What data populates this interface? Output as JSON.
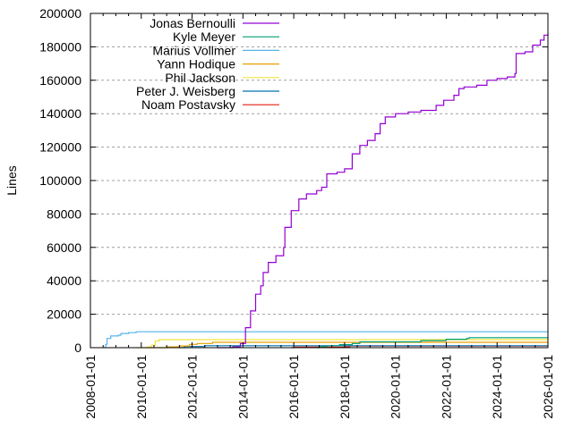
{
  "chart_data": {
    "type": "line",
    "title": "",
    "xlabel": "",
    "ylabel": "Lines",
    "xlim": [
      "2008-01-01",
      "2026-01-01"
    ],
    "ylim": [
      0,
      200000
    ],
    "grid": true,
    "legend_position": "top-left",
    "x_ticks": [
      "2008-01-01",
      "2010-01-01",
      "2012-01-01",
      "2014-01-01",
      "2016-01-01",
      "2018-01-01",
      "2020-01-01",
      "2022-01-01",
      "2024-01-01",
      "2026-01-01"
    ],
    "y_ticks": [
      0,
      20000,
      40000,
      60000,
      80000,
      100000,
      120000,
      140000,
      160000,
      180000,
      200000
    ],
    "series": [
      {
        "name": "Jonas Bernoulli",
        "color": "#9400d3",
        "points": [
          [
            2013.0,
            0
          ],
          [
            2013.6,
            500
          ],
          [
            2013.9,
            2500
          ],
          [
            2014.1,
            12000
          ],
          [
            2014.3,
            22000
          ],
          [
            2014.5,
            32000
          ],
          [
            2014.7,
            37000
          ],
          [
            2014.8,
            45000
          ],
          [
            2015.0,
            51000
          ],
          [
            2015.3,
            55000
          ],
          [
            2015.6,
            60000
          ],
          [
            2015.65,
            72000
          ],
          [
            2015.9,
            82000
          ],
          [
            2016.2,
            89000
          ],
          [
            2016.5,
            92000
          ],
          [
            2016.9,
            94000
          ],
          [
            2017.1,
            96000
          ],
          [
            2017.3,
            104000
          ],
          [
            2017.7,
            105000
          ],
          [
            2018.0,
            107000
          ],
          [
            2018.3,
            116000
          ],
          [
            2018.6,
            121000
          ],
          [
            2018.9,
            124000
          ],
          [
            2019.2,
            128000
          ],
          [
            2019.4,
            134000
          ],
          [
            2019.6,
            138000
          ],
          [
            2020.0,
            140000
          ],
          [
            2020.5,
            141000
          ],
          [
            2021.0,
            142000
          ],
          [
            2021.6,
            145000
          ],
          [
            2021.9,
            148000
          ],
          [
            2022.3,
            151000
          ],
          [
            2022.5,
            155000
          ],
          [
            2022.7,
            156000
          ],
          [
            2023.2,
            157000
          ],
          [
            2023.6,
            160000
          ],
          [
            2024.0,
            161000
          ],
          [
            2024.4,
            162000
          ],
          [
            2024.7,
            164000
          ],
          [
            2024.75,
            176000
          ],
          [
            2025.1,
            177000
          ],
          [
            2025.4,
            181000
          ],
          [
            2025.7,
            184000
          ],
          [
            2025.85,
            187000
          ],
          [
            2026.0,
            188000
          ]
        ]
      },
      {
        "name": "Kyle Meyer",
        "color": "#009e73",
        "points": [
          [
            2016.9,
            0
          ],
          [
            2017.0,
            700
          ],
          [
            2017.3,
            1200
          ],
          [
            2017.8,
            1800
          ],
          [
            2018.3,
            2500
          ],
          [
            2018.6,
            3500
          ],
          [
            2019.2,
            3500
          ],
          [
            2021.0,
            4200
          ],
          [
            2022.0,
            4200
          ],
          [
            2022.0,
            5000
          ],
          [
            2022.8,
            5500
          ],
          [
            2022.9,
            6000
          ],
          [
            2026.0,
            6000
          ]
        ]
      },
      {
        "name": "Marius Vollmer",
        "color": "#56b4e9",
        "points": [
          [
            2008.55,
            0
          ],
          [
            2008.6,
            2000
          ],
          [
            2008.65,
            5500
          ],
          [
            2008.8,
            7000
          ],
          [
            2009.1,
            7500
          ],
          [
            2009.2,
            8500
          ],
          [
            2009.5,
            9000
          ],
          [
            2009.8,
            9500
          ],
          [
            2026.0,
            9500
          ]
        ]
      },
      {
        "name": "Yann Hodique",
        "color": "#e69f00",
        "points": [
          [
            2010.3,
            0
          ],
          [
            2011.0,
            500
          ],
          [
            2011.5,
            1000
          ],
          [
            2011.9,
            2000
          ],
          [
            2012.2,
            2500
          ],
          [
            2012.8,
            3200
          ],
          [
            2026.0,
            3200
          ]
        ]
      },
      {
        "name": "Phil Jackson",
        "color": "#f0e442",
        "points": [
          [
            2009.8,
            0
          ],
          [
            2010.2,
            300
          ],
          [
            2010.4,
            1500
          ],
          [
            2010.55,
            4000
          ],
          [
            2010.7,
            4800
          ],
          [
            2026.0,
            4800
          ]
        ]
      },
      {
        "name": "Peter J. Weisberg",
        "color": "#0072b2",
        "points": [
          [
            2011.5,
            0
          ],
          [
            2011.7,
            700
          ],
          [
            2012.5,
            1200
          ],
          [
            2026.0,
            1200
          ]
        ]
      },
      {
        "name": "Noam Postavsky",
        "color": "#e51e10",
        "points": [
          [
            2015.9,
            0
          ],
          [
            2016.0,
            300
          ],
          [
            2018.0,
            500
          ],
          [
            2018.2,
            1000
          ],
          [
            2026.0,
            1000
          ]
        ]
      }
    ]
  }
}
